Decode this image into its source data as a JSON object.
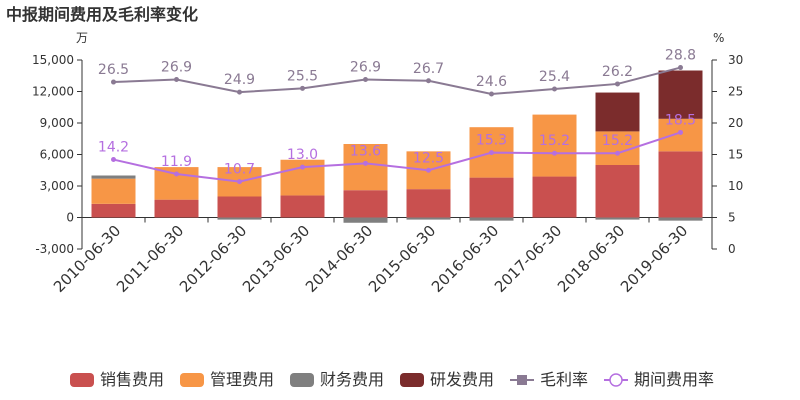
{
  "chart_data": {
    "type": "bar",
    "title": "中报期间费用及毛利率变化",
    "categories": [
      "2010-06-30",
      "2011-06-30",
      "2012-06-30",
      "2013-06-30",
      "2014-06-30",
      "2015-06-30",
      "2016-06-30",
      "2017-06-30",
      "2018-06-30",
      "2019-06-30"
    ],
    "left_unit": "万",
    "right_unit": "%",
    "ylim": [
      -3000,
      15000
    ],
    "y2lim": [
      0,
      30
    ],
    "y_ticks": [
      "15,000",
      "12,000",
      "9,000",
      "6,000",
      "3,000",
      "0",
      "-3,000"
    ],
    "y2_ticks": [
      "30",
      "25",
      "20",
      "15",
      "10",
      "5",
      "0"
    ],
    "series": [
      {
        "name": "销售费用",
        "kind": "bar",
        "color": "#c9504f",
        "values": [
          1300,
          1700,
          2000,
          2100,
          2600,
          2700,
          3800,
          3900,
          5000,
          6300
        ]
      },
      {
        "name": "管理费用",
        "kind": "bar",
        "color": "#f79646",
        "values": [
          2400,
          3100,
          2800,
          3400,
          4400,
          3600,
          4800,
          5900,
          3200,
          3100
        ]
      },
      {
        "name": "财务费用",
        "kind": "bar",
        "color": "#7f7f7f",
        "values": [
          300,
          0,
          -200,
          0,
          -500,
          -200,
          -300,
          0,
          -200,
          -300
        ]
      },
      {
        "name": "研发费用",
        "kind": "bar",
        "color": "#7b2c2c",
        "values": [
          0,
          0,
          0,
          0,
          0,
          0,
          0,
          0,
          3700,
          4600
        ]
      },
      {
        "name": "毛利率",
        "kind": "line",
        "color": "#8a7a93",
        "values": [
          26.5,
          26.9,
          24.9,
          25.5,
          26.9,
          26.7,
          24.6,
          25.4,
          26.2,
          28.8
        ],
        "labels": [
          "26.5",
          "26.9",
          "24.9",
          "25.5",
          "26.9",
          "26.7",
          "24.6",
          "25.4",
          "26.2",
          "28.8"
        ]
      },
      {
        "name": "期间费用率",
        "kind": "line",
        "color": "#b56fe0",
        "values": [
          14.2,
          11.9,
          10.7,
          13.0,
          13.6,
          12.5,
          15.3,
          15.2,
          15.2,
          18.5
        ],
        "labels": [
          "14.2",
          "11.9",
          "10.7",
          "13.0",
          "13.6",
          "12.5",
          "15.3",
          "15.2",
          "15.2",
          "18.5"
        ]
      }
    ],
    "legend_position": "bottom",
    "grid": false
  }
}
